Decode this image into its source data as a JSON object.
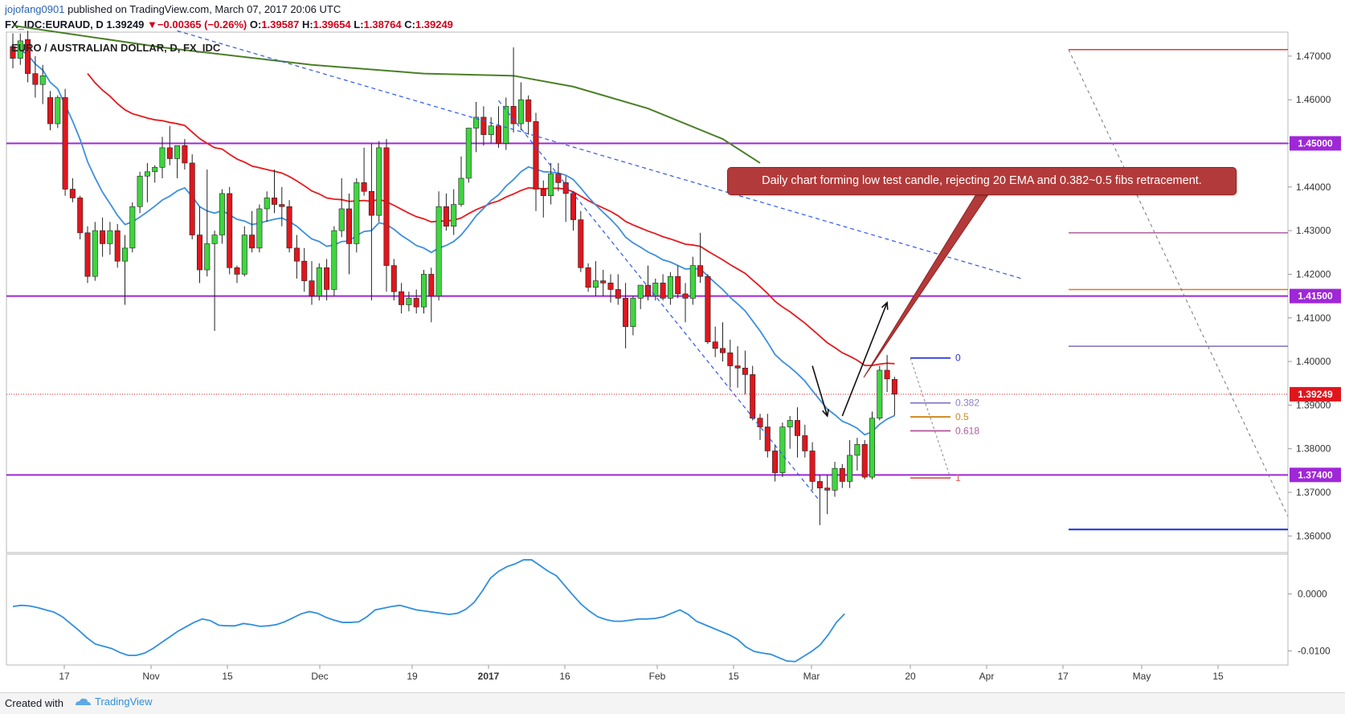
{
  "header": {
    "publisher": "jojofang0901",
    "published_text": "published on TradingView.com, March 07, 2017 20:06 UTC",
    "symbol": "FX_IDC:EURAUD, D",
    "last": "1.39249",
    "change": "−0.00365 (−0.26%)",
    "ohlc": {
      "o_label": "O:",
      "o": "1.39587",
      "h_label": "H:",
      "h": "1.39654",
      "l_label": "L:",
      "l": "1.38764",
      "c_label": "C:",
      "c": "1.39249"
    }
  },
  "chart_title": "EURO / AUSTRALIAN DOLLAR, D, FX_IDC",
  "annotation": "Daily chart forming low test candle, rejecting 20 EMA and 0.382~0.5 fibs retracement.",
  "footer": {
    "created_with": "Created with",
    "brand": "TradingView"
  },
  "colors": {
    "up": "#3ed63e",
    "down": "#e0161d",
    "ema_fast": "#3d8fe0",
    "ema_slow": "#e8191c",
    "ma_long": "#4a7f27",
    "level": "#9f27d8",
    "trend": "#2f57ee",
    "callout": "#b33a3a"
  },
  "chart_data": {
    "type": "candlestick",
    "y_range": [
      1.3562,
      1.4755
    ],
    "y_ticks": [
      "1.47000",
      "1.46000",
      "1.45000",
      "1.44000",
      "1.43000",
      "1.42000",
      "1.41000",
      "1.40000",
      "1.39000",
      "1.38000",
      "1.37000",
      "1.36000"
    ],
    "x_ticks": [
      "17",
      "Nov",
      "15",
      "Dec",
      "19",
      "2017",
      "16",
      "Feb",
      "15",
      "Mar",
      "20",
      "Apr",
      "17",
      "May",
      "15"
    ],
    "horizontal_levels": [
      {
        "value": 1.45,
        "label": "1.45000"
      },
      {
        "value": 1.415,
        "label": "1.41500"
      },
      {
        "value": 1.374,
        "label": "1.37400"
      }
    ],
    "current_price": {
      "value": 1.39249,
      "label": "1.39249"
    },
    "fibonacci": [
      {
        "label": "0",
        "value": 1.4008
      },
      {
        "label": "0.382",
        "value": 1.3905
      },
      {
        "label": "0.5",
        "value": 1.3873
      },
      {
        "label": "0.618",
        "value": 1.3841
      },
      {
        "label": "1",
        "value": 1.3733
      }
    ],
    "projection_levels": [
      1.4715,
      1.4295,
      1.4165,
      1.4035,
      1.3615
    ],
    "candles": [
      [
        1.4722,
        1.4752,
        1.4672,
        1.4695
      ],
      [
        1.4695,
        1.4752,
        1.468,
        1.4735
      ],
      [
        1.4738,
        1.4758,
        1.464,
        1.466
      ],
      [
        1.466,
        1.47,
        1.4605,
        1.4635
      ],
      [
        1.4635,
        1.468,
        1.459,
        1.4655
      ],
      [
        1.4605,
        1.462,
        1.453,
        1.4545
      ],
      [
        1.4545,
        1.461,
        1.4535,
        1.4605
      ],
      [
        1.4605,
        1.4625,
        1.438,
        1.4395
      ],
      [
        1.4395,
        1.442,
        1.4365,
        1.4375
      ],
      [
        1.4375,
        1.438,
        1.428,
        1.4295
      ],
      [
        1.4295,
        1.431,
        1.418,
        1.4195
      ],
      [
        1.4195,
        1.432,
        1.4185,
        1.43
      ],
      [
        1.43,
        1.433,
        1.424,
        1.427
      ],
      [
        1.427,
        1.432,
        1.4245,
        1.43
      ],
      [
        1.43,
        1.4315,
        1.4215,
        1.423
      ],
      [
        1.423,
        1.429,
        1.413,
        1.426
      ],
      [
        1.426,
        1.4365,
        1.425,
        1.4355
      ],
      [
        1.4355,
        1.4435,
        1.434,
        1.4425
      ],
      [
        1.4425,
        1.4455,
        1.4365,
        1.4435
      ],
      [
        1.4435,
        1.445,
        1.441,
        1.4445
      ],
      [
        1.4445,
        1.4515,
        1.442,
        1.449
      ],
      [
        1.449,
        1.454,
        1.445,
        1.4465
      ],
      [
        1.4465,
        1.4495,
        1.442,
        1.4495
      ],
      [
        1.4495,
        1.451,
        1.444,
        1.4455
      ],
      [
        1.4455,
        1.4475,
        1.428,
        1.429
      ],
      [
        1.429,
        1.4355,
        1.418,
        1.421
      ],
      [
        1.421,
        1.444,
        1.4195,
        1.427
      ],
      [
        1.427,
        1.43,
        1.407,
        1.429
      ],
      [
        1.429,
        1.4395,
        1.427,
        1.4385
      ],
      [
        1.4385,
        1.44,
        1.42,
        1.4215
      ],
      [
        1.4215,
        1.422,
        1.418,
        1.42
      ],
      [
        1.42,
        1.431,
        1.4195,
        1.429
      ],
      [
        1.429,
        1.4345,
        1.425,
        1.426
      ],
      [
        1.426,
        1.436,
        1.425,
        1.435
      ],
      [
        1.435,
        1.439,
        1.432,
        1.4375
      ],
      [
        1.4375,
        1.444,
        1.434,
        1.436
      ],
      [
        1.436,
        1.44,
        1.431,
        1.4355
      ],
      [
        1.4355,
        1.437,
        1.425,
        1.426
      ],
      [
        1.426,
        1.429,
        1.419,
        1.423
      ],
      [
        1.423,
        1.426,
        1.416,
        1.4185
      ],
      [
        1.4185,
        1.423,
        1.413,
        1.415
      ],
      [
        1.415,
        1.4225,
        1.414,
        1.4215
      ],
      [
        1.4215,
        1.4235,
        1.414,
        1.4165
      ],
      [
        1.4165,
        1.431,
        1.415,
        1.43
      ],
      [
        1.43,
        1.442,
        1.4285,
        1.435
      ],
      [
        1.435,
        1.4385,
        1.42,
        1.427
      ],
      [
        1.427,
        1.442,
        1.425,
        1.441
      ],
      [
        1.441,
        1.449,
        1.438,
        1.439
      ],
      [
        1.439,
        1.45,
        1.414,
        1.4335
      ],
      [
        1.4335,
        1.4505,
        1.432,
        1.449
      ],
      [
        1.449,
        1.451,
        1.416,
        1.422
      ],
      [
        1.422,
        1.4235,
        1.414,
        1.416
      ],
      [
        1.416,
        1.418,
        1.411,
        1.413
      ],
      [
        1.413,
        1.416,
        1.4115,
        1.4145
      ],
      [
        1.4145,
        1.4165,
        1.411,
        1.4125
      ],
      [
        1.4125,
        1.421,
        1.411,
        1.42
      ],
      [
        1.42,
        1.4215,
        1.409,
        1.415
      ],
      [
        1.415,
        1.439,
        1.414,
        1.4355
      ],
      [
        1.4355,
        1.4385,
        1.43,
        1.431
      ],
      [
        1.431,
        1.4395,
        1.429,
        1.436
      ],
      [
        1.436,
        1.447,
        1.4355,
        1.442
      ],
      [
        1.442,
        1.453,
        1.441,
        1.4535
      ],
      [
        1.4535,
        1.4595,
        1.448,
        1.456
      ],
      [
        1.456,
        1.4585,
        1.4495,
        1.452
      ],
      [
        1.452,
        1.456,
        1.45,
        1.454
      ],
      [
        1.454,
        1.4585,
        1.449,
        1.45
      ],
      [
        1.45,
        1.4605,
        1.4485,
        1.4585
      ],
      [
        1.4585,
        1.472,
        1.4525,
        1.4545
      ],
      [
        1.4545,
        1.464,
        1.453,
        1.46
      ],
      [
        1.46,
        1.461,
        1.452,
        1.455
      ],
      [
        1.455,
        1.457,
        1.4345,
        1.4395
      ],
      [
        1.4395,
        1.4415,
        1.433,
        1.438
      ],
      [
        1.438,
        1.4455,
        1.436,
        1.443
      ],
      [
        1.443,
        1.4455,
        1.439,
        1.441
      ],
      [
        1.441,
        1.4425,
        1.432,
        1.4385
      ],
      [
        1.4385,
        1.439,
        1.43,
        1.4325
      ],
      [
        1.4325,
        1.4345,
        1.4205,
        1.4215
      ],
      [
        1.4215,
        1.4225,
        1.416,
        1.417
      ],
      [
        1.417,
        1.423,
        1.415,
        1.4185
      ],
      [
        1.4185,
        1.421,
        1.415,
        1.418
      ],
      [
        1.418,
        1.42,
        1.4135,
        1.4165
      ],
      [
        1.4165,
        1.42,
        1.413,
        1.4145
      ],
      [
        1.4145,
        1.418,
        1.403,
        1.408
      ],
      [
        1.408,
        1.415,
        1.406,
        1.4145
      ],
      [
        1.4145,
        1.4175,
        1.412,
        1.4175
      ],
      [
        1.4175,
        1.422,
        1.414,
        1.415
      ],
      [
        1.415,
        1.419,
        1.414,
        1.418
      ],
      [
        1.418,
        1.42,
        1.414,
        1.4145
      ],
      [
        1.4145,
        1.4205,
        1.413,
        1.4195
      ],
      [
        1.4195,
        1.422,
        1.4145,
        1.4155
      ],
      [
        1.4155,
        1.418,
        1.409,
        1.4145
      ],
      [
        1.4145,
        1.424,
        1.413,
        1.422
      ],
      [
        1.422,
        1.4295,
        1.418,
        1.4195
      ],
      [
        1.4195,
        1.42,
        1.404,
        1.4045
      ],
      [
        1.4045,
        1.408,
        1.401,
        1.403
      ],
      [
        1.403,
        1.409,
        1.4,
        1.402
      ],
      [
        1.402,
        1.405,
        1.394,
        1.399
      ],
      [
        1.399,
        1.4035,
        1.394,
        1.3985
      ],
      [
        1.3985,
        1.4025,
        1.3925,
        1.397
      ],
      [
        1.397,
        1.399,
        1.3865,
        1.387
      ],
      [
        1.387,
        1.388,
        1.382,
        1.385
      ],
      [
        1.385,
        1.388,
        1.378,
        1.3795
      ],
      [
        1.3795,
        1.381,
        1.3725,
        1.3745
      ],
      [
        1.3745,
        1.386,
        1.3735,
        1.385
      ],
      [
        1.385,
        1.3875,
        1.38,
        1.3865
      ],
      [
        1.3865,
        1.3895,
        1.378,
        1.383
      ],
      [
        1.383,
        1.3855,
        1.378,
        1.3795
      ],
      [
        1.3795,
        1.3815,
        1.3705,
        1.3725
      ],
      [
        1.3725,
        1.374,
        1.3625,
        1.371
      ],
      [
        1.371,
        1.374,
        1.365,
        1.3705
      ],
      [
        1.3705,
        1.377,
        1.369,
        1.3755
      ],
      [
        1.3755,
        1.3765,
        1.371,
        1.3725
      ],
      [
        1.3725,
        1.382,
        1.371,
        1.3785
      ],
      [
        1.3785,
        1.3825,
        1.375,
        1.381
      ],
      [
        1.381,
        1.382,
        1.373,
        1.3735
      ],
      [
        1.3735,
        1.3885,
        1.373,
        1.387
      ],
      [
        1.387,
        1.399,
        1.3865,
        1.398
      ],
      [
        1.398,
        1.4015,
        1.393,
        1.396
      ],
      [
        1.3959,
        1.3965,
        1.3876,
        1.3925
      ]
    ],
    "ema_fast": [
      1.471,
      1.4715,
      1.4703,
      1.4682,
      1.4668,
      1.464,
      1.4625,
      1.4588,
      1.4551,
      1.4509,
      1.4458,
      1.4421,
      1.4388,
      1.4362,
      1.4335,
      1.4314,
      1.432,
      1.4331,
      1.4343,
      1.4356,
      1.437,
      1.4379,
      1.4391,
      1.4398,
      1.4378,
      1.4355,
      1.4345,
      1.434,
      1.4346,
      1.4336,
      1.4326,
      1.4322,
      1.4314,
      1.4317,
      1.4322,
      1.4326,
      1.4329,
      1.4321,
      1.431,
      1.4295,
      1.4281,
      1.4275,
      1.4264,
      1.4267,
      1.4275,
      1.4276,
      1.4289,
      1.4298,
      1.43,
      1.4318,
      1.4314,
      1.4303,
      1.4289,
      1.4278,
      1.4266,
      1.426,
      1.425,
      1.426,
      1.4266,
      1.4275,
      1.429,
      1.4311,
      1.4334,
      1.4351,
      1.4369,
      1.4382,
      1.4402,
      1.4417,
      1.4435,
      1.4446,
      1.4441,
      1.4435,
      1.4434,
      1.4432,
      1.4427,
      1.4417,
      1.4398,
      1.4377,
      1.4359,
      1.4342,
      1.4326,
      1.4308,
      1.4285,
      1.4272,
      1.4262,
      1.4251,
      1.4243,
      1.4233,
      1.4228,
      1.422,
      1.4212,
      1.4213,
      1.4212,
      1.4196,
      1.418,
      1.4165,
      1.4147,
      1.4132,
      1.4116,
      1.4093,
      1.407,
      1.4044,
      1.4016,
      1.4,
      1.3987,
      1.3972,
      1.3955,
      1.3933,
      1.3912,
      1.3891,
      1.3878,
      1.3863,
      1.3856,
      1.3847,
      1.3832,
      1.3839,
      1.3856,
      1.3868,
      1.3876
    ],
    "ema_slow": [
      null,
      null,
      null,
      null,
      null,
      null,
      null,
      null,
      null,
      null,
      1.466,
      1.4639,
      1.4622,
      1.4608,
      1.4591,
      1.4577,
      1.4568,
      1.4563,
      1.4558,
      1.4554,
      1.4552,
      1.4548,
      1.4545,
      1.4541,
      1.4526,
      1.4511,
      1.45,
      1.449,
      1.4487,
      1.4475,
      1.4464,
      1.4457,
      1.4448,
      1.4444,
      1.444,
      1.4436,
      1.4432,
      1.4424,
      1.4414,
      1.4403,
      1.4391,
      1.4384,
      1.4375,
      1.4372,
      1.4371,
      1.4367,
      1.4368,
      1.4369,
      1.4367,
      1.4372,
      1.4366,
      1.4358,
      1.4349,
      1.434,
      1.4332,
      1.4327,
      1.432,
      1.4322,
      1.4322,
      1.4324,
      1.4329,
      1.4339,
      1.4348,
      1.4355,
      1.4363,
      1.4368,
      1.4377,
      1.4384,
      1.4392,
      1.4398,
      1.4397,
      1.4396,
      1.4397,
      1.4397,
      1.4395,
      1.4389,
      1.4379,
      1.4369,
      1.436,
      1.4352,
      1.4344,
      1.4334,
      1.4321,
      1.4313,
      1.4306,
      1.4299,
      1.4293,
      1.4286,
      1.4281,
      1.4275,
      1.4269,
      1.4267,
      1.4264,
      1.4253,
      1.4243,
      1.4233,
      1.4222,
      1.4212,
      1.4202,
      1.4187,
      1.4172,
      1.4156,
      1.4138,
      1.4125,
      1.4114,
      1.4101,
      1.4088,
      1.4073,
      1.4058,
      1.4043,
      1.4032,
      1.402,
      1.4012,
      1.4003,
      1.3991,
      1.3991,
      1.3994,
      1.3996,
      1.3995
    ],
    "ma_long_points": [
      [
        0,
        1.477
      ],
      [
        20,
        1.472
      ],
      [
        40,
        1.468
      ],
      [
        55,
        1.466
      ],
      [
        67,
        1.4655
      ],
      [
        75,
        1.463
      ],
      [
        85,
        1.458
      ],
      [
        95,
        1.451
      ],
      [
        100,
        1.4455
      ]
    ],
    "trendlines": [
      {
        "from": [
          22,
          1.4758
        ],
        "to": [
          135,
          1.419
        ]
      },
      {
        "from": [
          65,
          1.4598
        ],
        "to": [
          108,
          1.368
        ]
      }
    ],
    "arrows": [
      {
        "from": [
          107,
          1.399
        ],
        "to": [
          109,
          1.3875
        ]
      },
      {
        "from": [
          111,
          1.3875
        ],
        "to": [
          117,
          1.4135
        ]
      }
    ],
    "indicator": {
      "y_ticks": [
        "0.0000",
        "-0.0100"
      ],
      "values": [
        -0.0022,
        -0.002,
        -0.0021,
        -0.0024,
        -0.0028,
        -0.0032,
        -0.004,
        -0.0052,
        -0.0064,
        -0.0077,
        -0.0088,
        -0.0092,
        -0.0096,
        -0.0103,
        -0.0108,
        -0.0108,
        -0.0104,
        -0.0096,
        -0.0086,
        -0.0076,
        -0.0066,
        -0.0058,
        -0.005,
        -0.0044,
        -0.0047,
        -0.0055,
        -0.0056,
        -0.0056,
        -0.0052,
        -0.0054,
        -0.0057,
        -0.0056,
        -0.0054,
        -0.0049,
        -0.0042,
        -0.0035,
        -0.0031,
        -0.0034,
        -0.0041,
        -0.0046,
        -0.005,
        -0.005,
        -0.0049,
        -0.004,
        -0.0028,
        -0.0025,
        -0.0022,
        -0.002,
        -0.0024,
        -0.0028,
        -0.003,
        -0.0032,
        -0.0034,
        -0.0036,
        -0.0034,
        -0.0027,
        -0.0015,
        0.0005,
        0.0028,
        0.004,
        0.0048,
        0.0053,
        0.006,
        0.006,
        0.005,
        0.004,
        0.0032,
        0.0015,
        -0.0002,
        -0.0018,
        -0.003,
        -0.004,
        -0.0045,
        -0.0048,
        -0.0048,
        -0.0046,
        -0.0044,
        -0.0044,
        -0.0043,
        -0.004,
        -0.0034,
        -0.0028,
        -0.0036,
        -0.0048,
        -0.0054,
        -0.006,
        -0.0066,
        -0.0072,
        -0.008,
        -0.0093,
        -0.0101,
        -0.0104,
        -0.0106,
        -0.0112,
        -0.0118,
        -0.0119,
        -0.011,
        -0.0101,
        -0.009,
        -0.0072,
        -0.005,
        -0.0035
      ]
    }
  }
}
